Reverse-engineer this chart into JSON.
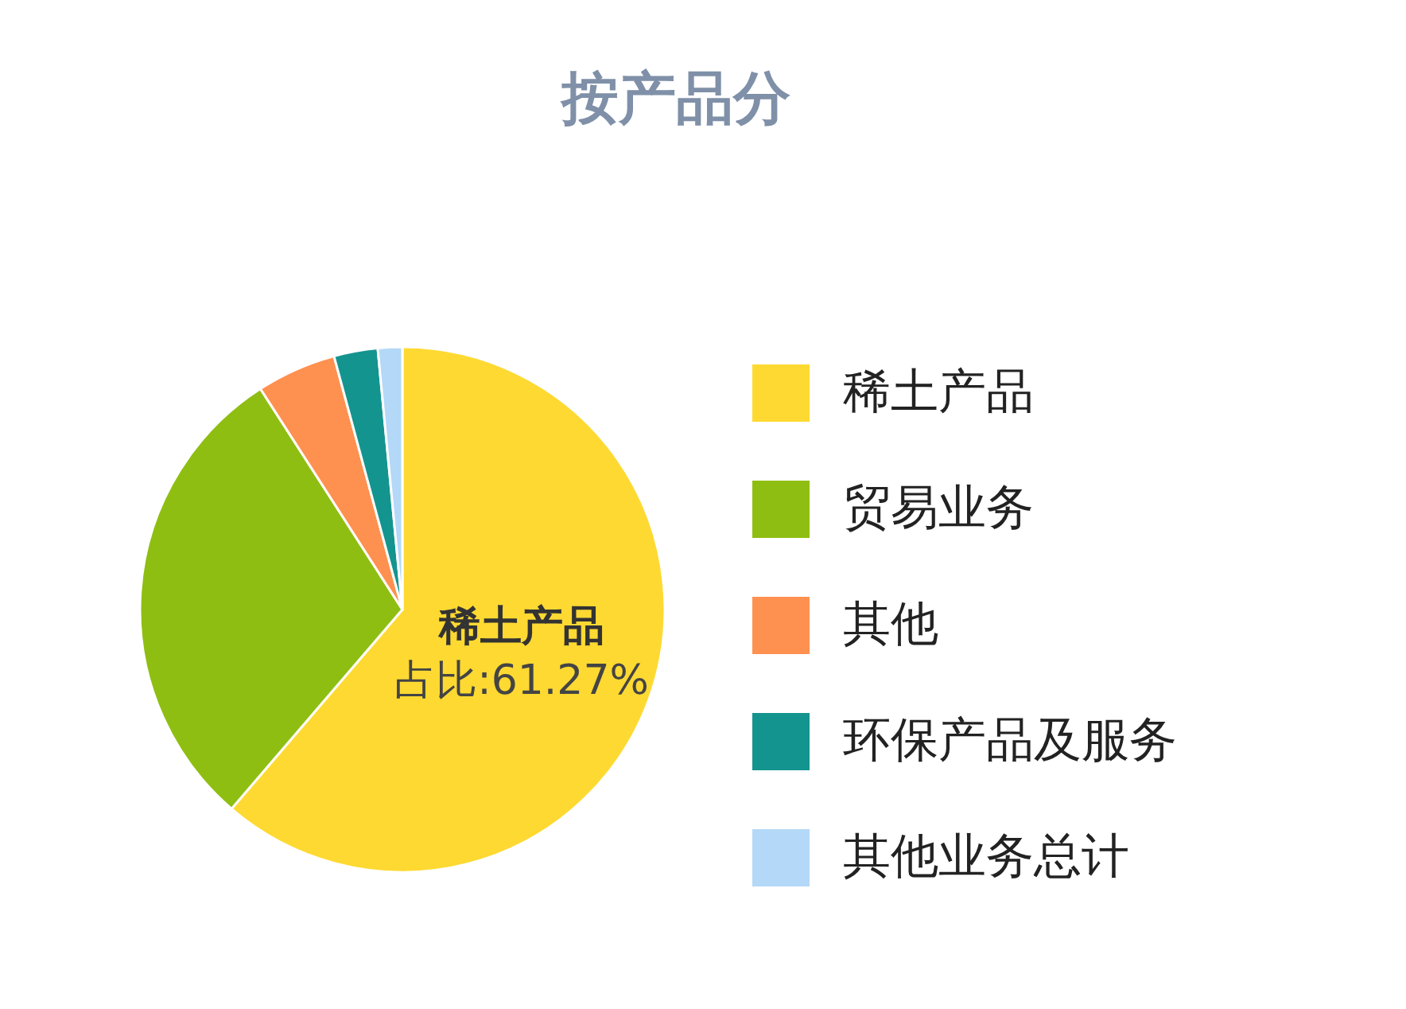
{
  "chart_data": {
    "type": "pie",
    "title": "按产品分",
    "categories": [
      "稀土产品",
      "贸易业务",
      "其他",
      "环保产品及服务",
      "其他业务总计"
    ],
    "values": [
      61.27,
      29.6,
      4.9,
      2.7,
      1.5
    ],
    "colors": [
      "#fed932",
      "#8fbe12",
      "#fe9150",
      "#14948e",
      "#b4d8f7"
    ],
    "value_labels": [
      "占比:61.27%",
      null,
      null,
      null,
      null
    ],
    "legend": "right"
  }
}
